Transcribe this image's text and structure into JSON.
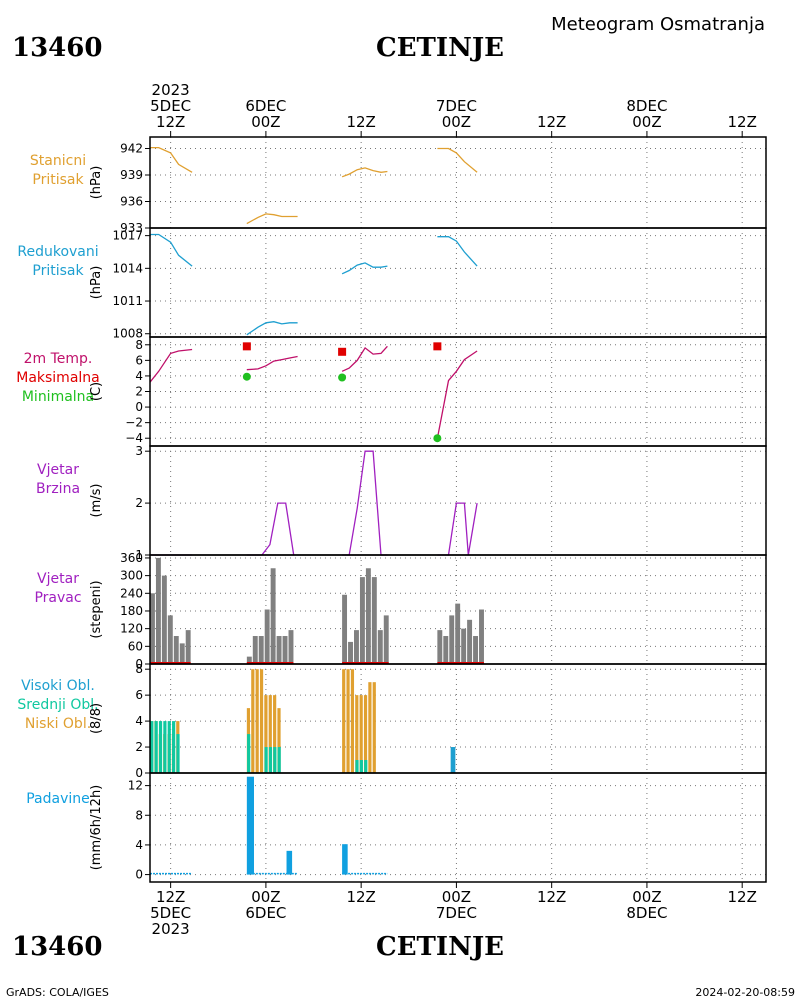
{
  "header": {
    "station_id": "13460",
    "station_name": "CETINJE",
    "subtitle": "Meteogram Osmatranja"
  },
  "footer": {
    "left": "GrADS: COLA/IGES",
    "right": "2024-02-20-08:59"
  },
  "colors": {
    "orange": "#e0a030",
    "cyan": "#1e9fd0",
    "magenta": "#c0106a",
    "red": "#e00000",
    "green": "#20c020",
    "purple": "#a020c0",
    "gray": "#808080",
    "teal": "#10c8a0",
    "blue": "#10a0e0"
  },
  "time_axis": {
    "top_ticks": [
      {
        "t": 0,
        "lines": [
          "2023",
          "5DEC",
          "12Z"
        ]
      },
      {
        "t": 12,
        "lines": [
          "6DEC",
          "00Z"
        ]
      },
      {
        "t": 24,
        "lines": [
          "12Z"
        ]
      },
      {
        "t": 36,
        "lines": [
          "7DEC",
          "00Z"
        ]
      },
      {
        "t": 48,
        "lines": [
          "12Z"
        ]
      },
      {
        "t": 60,
        "lines": [
          "8DEC",
          "00Z"
        ]
      },
      {
        "t": 72,
        "lines": [
          "12Z"
        ]
      }
    ],
    "bottom_ticks": [
      {
        "t": 0,
        "lines": [
          "12Z",
          "5DEC",
          "2023"
        ]
      },
      {
        "t": 12,
        "lines": [
          "00Z",
          "6DEC"
        ]
      },
      {
        "t": 24,
        "lines": [
          "12Z"
        ]
      },
      {
        "t": 36,
        "lines": [
          "00Z",
          "7DEC"
        ]
      },
      {
        "t": 48,
        "lines": [
          "12Z"
        ]
      },
      {
        "t": 60,
        "lines": [
          "00Z",
          "8DEC"
        ]
      },
      {
        "t": 72,
        "lines": [
          "12Z"
        ]
      }
    ],
    "t_min": -2.6,
    "t_max": 75.0
  },
  "chart_data": [
    {
      "type": "line",
      "panel": "Stanicni Pritisak",
      "labels": [
        "Stanicni",
        "Pritisak"
      ],
      "label_colors": [
        "orange",
        "orange"
      ],
      "ylabel": "(hPa)",
      "ylim": [
        933,
        943.3
      ],
      "yticks": [
        933,
        936,
        939,
        942
      ],
      "color": "orange",
      "segments": [
        [
          [
            -2.6,
            942.1
          ],
          [
            -1.5,
            942.1
          ],
          [
            0,
            941.5
          ],
          [
            1,
            940.2
          ],
          [
            2.7,
            939.3
          ]
        ],
        [
          [
            9.6,
            933.5
          ],
          [
            11,
            934.2
          ],
          [
            12,
            934.6
          ],
          [
            13,
            934.5
          ],
          [
            14,
            934.3
          ],
          [
            15,
            934.3
          ],
          [
            16,
            934.3
          ]
        ],
        [
          [
            21.6,
            938.8
          ],
          [
            22.5,
            939.1
          ],
          [
            23.5,
            939.6
          ],
          [
            24.5,
            939.8
          ],
          [
            25.5,
            939.5
          ],
          [
            26.5,
            939.3
          ],
          [
            27.3,
            939.4
          ]
        ],
        [
          [
            33.6,
            942
          ],
          [
            35,
            942
          ],
          [
            36,
            941.5
          ],
          [
            37,
            940.5
          ],
          [
            38.6,
            939.3
          ]
        ]
      ]
    },
    {
      "type": "line",
      "panel": "Redukovani Pritisak",
      "labels": [
        "Redukovani",
        "Pritisak"
      ],
      "label_colors": [
        "cyan",
        "cyan"
      ],
      "ylabel": "(hPa)",
      "ylim": [
        1007.7,
        1017.7
      ],
      "yticks": [
        1008,
        1011,
        1014,
        1017
      ],
      "color": "cyan",
      "segments": [
        [
          [
            -2.6,
            1017.1
          ],
          [
            -1.5,
            1017.1
          ],
          [
            0,
            1016.4
          ],
          [
            1,
            1015.2
          ],
          [
            2.7,
            1014.2
          ]
        ],
        [
          [
            9.6,
            1007.9
          ],
          [
            11,
            1008.6
          ],
          [
            12,
            1009
          ],
          [
            13,
            1009.1
          ],
          [
            14,
            1008.9
          ],
          [
            15,
            1009
          ],
          [
            16,
            1009
          ]
        ],
        [
          [
            21.6,
            1013.5
          ],
          [
            22.5,
            1013.8
          ],
          [
            23.5,
            1014.3
          ],
          [
            24.5,
            1014.5
          ],
          [
            25.5,
            1014.1
          ],
          [
            26.5,
            1014.1
          ],
          [
            27.3,
            1014.2
          ]
        ],
        [
          [
            33.6,
            1016.9
          ],
          [
            35,
            1016.9
          ],
          [
            36,
            1016.5
          ],
          [
            37,
            1015.5
          ],
          [
            38.6,
            1014.2
          ]
        ]
      ]
    },
    {
      "type": "line",
      "panel": "2m Temp.",
      "labels": [
        "2m Temp.",
        "Maksimalna",
        "Minimalna"
      ],
      "label_colors": [
        "magenta",
        "red",
        "green"
      ],
      "ylabel": "(C)",
      "ylim": [
        -5,
        9
      ],
      "yticks": [
        -4,
        -2,
        0,
        2,
        4,
        6,
        8
      ],
      "color": "magenta",
      "segments": [
        [
          [
            -2.6,
            3.2
          ],
          [
            -1.5,
            4.6
          ],
          [
            0,
            6.9
          ],
          [
            1,
            7.2
          ],
          [
            2.7,
            7.4
          ]
        ],
        [
          [
            9.6,
            4.8
          ],
          [
            11,
            4.9
          ],
          [
            12,
            5.3
          ],
          [
            13,
            5.9
          ],
          [
            14,
            6.1
          ],
          [
            15,
            6.3
          ],
          [
            16,
            6.5
          ]
        ],
        [
          [
            21.6,
            4.6
          ],
          [
            22.5,
            5
          ],
          [
            23.5,
            6
          ],
          [
            24.5,
            7.6
          ],
          [
            25.5,
            6.8
          ],
          [
            26.5,
            6.9
          ],
          [
            27.3,
            7.8
          ]
        ],
        [
          [
            33.6,
            -4
          ],
          [
            35,
            3.4
          ],
          [
            36,
            4.6
          ],
          [
            37,
            6.1
          ],
          [
            38.6,
            7.2
          ]
        ]
      ],
      "max_points": [
        [
          9.6,
          7.8
        ],
        [
          21.6,
          7.1
        ],
        [
          33.6,
          7.8
        ]
      ],
      "min_points": [
        [
          9.6,
          3.9
        ],
        [
          21.6,
          3.8
        ],
        [
          33.6,
          -4.0
        ]
      ]
    },
    {
      "type": "line",
      "panel": "Vjetar Brzina",
      "labels": [
        "Vjetar",
        "Brzina"
      ],
      "label_colors": [
        "purple",
        "purple"
      ],
      "ylabel": "(m/s)",
      "ylim": [
        1,
        3.1
      ],
      "yticks": [
        1,
        2,
        3
      ],
      "color": "purple",
      "segments": [
        [
          [
            -2.6,
            1
          ],
          [
            2.7,
            1
          ]
        ],
        [
          [
            9.6,
            1
          ],
          [
            11.5,
            1
          ],
          [
            12.5,
            1.2
          ],
          [
            13.5,
            2
          ],
          [
            14.5,
            2
          ],
          [
            15.5,
            1
          ]
        ],
        [
          [
            21.6,
            1
          ],
          [
            22.5,
            1
          ],
          [
            23.5,
            1.9
          ],
          [
            24.5,
            3
          ],
          [
            25.5,
            3
          ],
          [
            26.5,
            1
          ],
          [
            27.3,
            1
          ]
        ],
        [
          [
            33.6,
            1
          ],
          [
            35,
            1
          ],
          [
            36,
            2
          ],
          [
            37,
            2
          ],
          [
            37.5,
            1
          ],
          [
            38.6,
            2
          ]
        ]
      ]
    },
    {
      "type": "bar",
      "panel": "Vjetar Pravac",
      "labels": [
        "Vjetar",
        "Pravac"
      ],
      "label_colors": [
        "purple",
        "purple"
      ],
      "ylabel": "(stepeni)",
      "ylim": [
        0,
        370
      ],
      "yticks": [
        0,
        60,
        120,
        180,
        240,
        300,
        360
      ],
      "color": "gray",
      "bar_width_h": 0.62,
      "baseline_color": "red",
      "groups": [
        {
          "start": -2.6,
          "step": 0.75,
          "values": [
            240,
            360,
            300,
            165,
            95,
            70,
            115
          ]
        },
        {
          "start": 9.6,
          "step": 0.75,
          "values": [
            25,
            95,
            95,
            185,
            325,
            95,
            95,
            115
          ]
        },
        {
          "start": 21.6,
          "step": 0.75,
          "values": [
            235,
            75,
            115,
            295,
            325,
            295,
            115,
            165
          ]
        },
        {
          "start": 33.6,
          "step": 0.75,
          "values": [
            115,
            95,
            165,
            205,
            120,
            150,
            95,
            185
          ]
        }
      ]
    },
    {
      "type": "bar",
      "panel": "Oblacnost",
      "labels": [
        "Visoki Obl.",
        "Srednji Obl.",
        "Niski Obl."
      ],
      "label_colors": [
        "cyan",
        "teal",
        "orange"
      ],
      "ylabel": "(8/8)",
      "ylim": [
        0,
        8.4
      ],
      "yticks": [
        0,
        2,
        4,
        6,
        8
      ],
      "series": [
        {
          "name": "Visoki Obl.",
          "color": "cyan"
        },
        {
          "name": "Srednji Obl.",
          "color": "teal"
        },
        {
          "name": "Niski Obl.",
          "color": "orange"
        }
      ],
      "groups": [
        {
          "start": -2.6,
          "step": 0.55,
          "values": [
            [
              0,
              4,
              4
            ],
            [
              0,
              4,
              4
            ],
            [
              0,
              4,
              3
            ],
            [
              0,
              4,
              3
            ],
            [
              0,
              4,
              3
            ],
            [
              0,
              4,
              3
            ],
            [
              0,
              3,
              4
            ]
          ]
        },
        {
          "start": 9.6,
          "step": 0.55,
          "values": [
            [
              0,
              3,
              5
            ],
            [
              0,
              0,
              8
            ],
            [
              0,
              0,
              8
            ],
            [
              0,
              0,
              8
            ],
            [
              0,
              2,
              6
            ],
            [
              0,
              2,
              6
            ],
            [
              0,
              2,
              6
            ],
            [
              0,
              2,
              5
            ]
          ]
        },
        {
          "start": 21.6,
          "step": 0.55,
          "values": [
            [
              0,
              0,
              8
            ],
            [
              0,
              0,
              8
            ],
            [
              0,
              0,
              8
            ],
            [
              0,
              1,
              6
            ],
            [
              0,
              1,
              6
            ],
            [
              0,
              1,
              6
            ],
            [
              0,
              0,
              7
            ],
            [
              0,
              0,
              7
            ]
          ]
        },
        {
          "start": 33.6,
          "step": 0.55,
          "values": [
            [
              0,
              0,
              0
            ],
            [
              0,
              0,
              0
            ],
            [
              0,
              0,
              0
            ],
            [
              2,
              0,
              0
            ],
            [
              0,
              0,
              0
            ],
            [
              0,
              0,
              0
            ],
            [
              0,
              0,
              0
            ],
            [
              0,
              0,
              0
            ]
          ]
        }
      ]
    },
    {
      "type": "bar",
      "panel": "Padavine",
      "labels": [
        "Padavine"
      ],
      "label_colors": [
        "blue"
      ],
      "ylabel": "(mm/6h/12h)",
      "ylim": [
        -1,
        13.7
      ],
      "yticks": [
        0,
        4,
        8,
        12
      ],
      "color": "blue",
      "bars": [
        {
          "t": 9.6,
          "w": 0.9,
          "v": 13.2
        },
        {
          "t": 14.6,
          "w": 0.7,
          "v": 3.2
        },
        {
          "t": 21.6,
          "w": 0.7,
          "v": 4.1
        }
      ],
      "baseline_segments": [
        [
          -2.6,
          2.7
        ],
        [
          9.6,
          16
        ],
        [
          21.6,
          27.3
        ]
      ]
    }
  ]
}
